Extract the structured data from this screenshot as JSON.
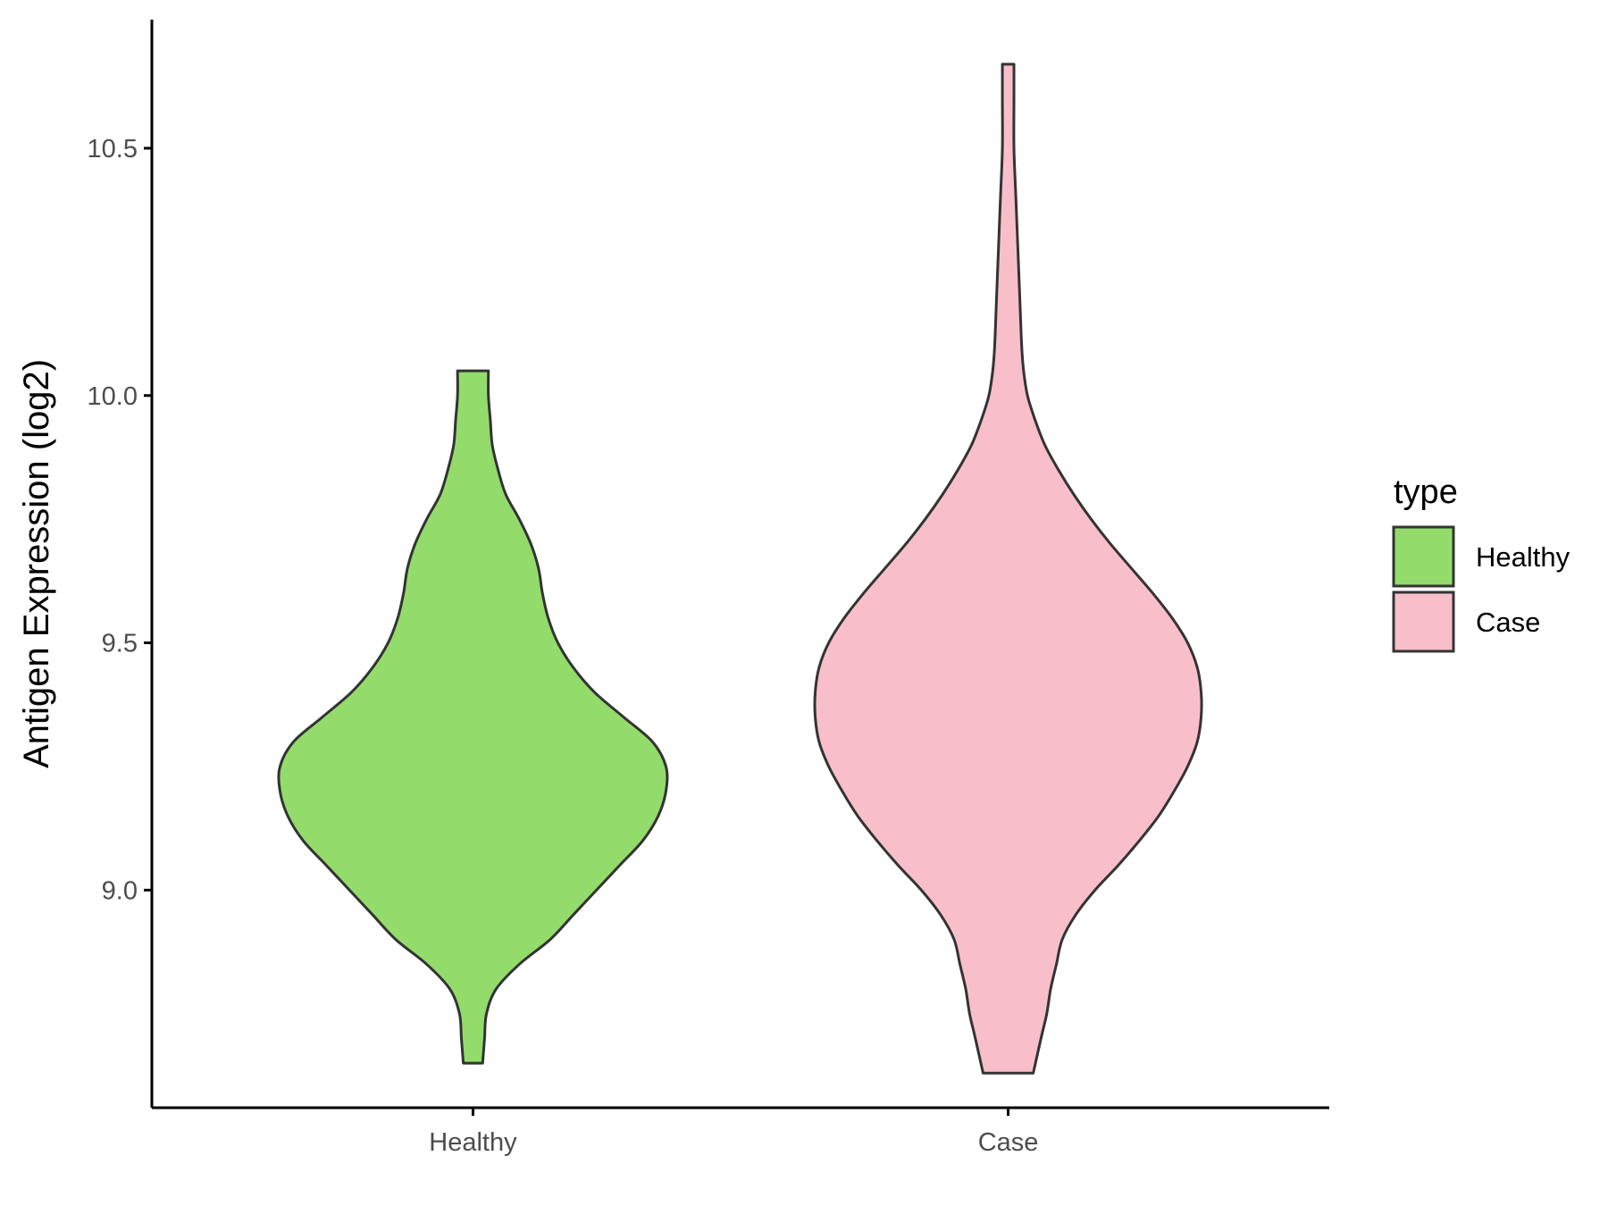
{
  "chart_data": {
    "type": "violin",
    "title": "",
    "xlabel": "",
    "ylabel": "Antigen Expression (log2)",
    "ylim": [
      8.56,
      10.76
    ],
    "yticks": [
      "9.0",
      "9.5",
      "10.0",
      "10.5"
    ],
    "ytick_values": [
      9.0,
      9.5,
      10.0,
      10.5
    ],
    "categories": [
      "Healthy",
      "Case"
    ],
    "grid": false,
    "legend": {
      "title": "type",
      "position": "right",
      "entries": [
        "Healthy",
        "Case"
      ]
    },
    "series": [
      {
        "name": "Healthy",
        "color": "#93DC6B",
        "ymin": 8.65,
        "ymax": 10.05,
        "density_profile": [
          [
            8.65,
            0.05
          ],
          [
            8.7,
            0.06
          ],
          [
            8.75,
            0.07
          ],
          [
            8.8,
            0.12
          ],
          [
            8.85,
            0.24
          ],
          [
            8.9,
            0.4
          ],
          [
            8.95,
            0.52
          ],
          [
            9.0,
            0.64
          ],
          [
            9.05,
            0.76
          ],
          [
            9.1,
            0.88
          ],
          [
            9.15,
            0.96
          ],
          [
            9.2,
            1.0
          ],
          [
            9.25,
            1.0
          ],
          [
            9.3,
            0.93
          ],
          [
            9.35,
            0.78
          ],
          [
            9.4,
            0.63
          ],
          [
            9.45,
            0.52
          ],
          [
            9.5,
            0.44
          ],
          [
            9.55,
            0.39
          ],
          [
            9.6,
            0.36
          ],
          [
            9.65,
            0.34
          ],
          [
            9.7,
            0.3
          ],
          [
            9.75,
            0.24
          ],
          [
            9.8,
            0.17
          ],
          [
            9.85,
            0.13
          ],
          [
            9.9,
            0.1
          ],
          [
            9.95,
            0.09
          ],
          [
            10.0,
            0.08
          ],
          [
            10.05,
            0.08
          ]
        ]
      },
      {
        "name": "Case",
        "color": "#F8BFCB",
        "ymin": 8.63,
        "ymax": 10.67,
        "density_profile": [
          [
            8.63,
            0.13
          ],
          [
            8.7,
            0.17
          ],
          [
            8.75,
            0.2
          ],
          [
            8.8,
            0.22
          ],
          [
            8.85,
            0.25
          ],
          [
            8.9,
            0.28
          ],
          [
            8.95,
            0.35
          ],
          [
            9.0,
            0.45
          ],
          [
            9.05,
            0.57
          ],
          [
            9.1,
            0.68
          ],
          [
            9.15,
            0.78
          ],
          [
            9.2,
            0.86
          ],
          [
            9.25,
            0.93
          ],
          [
            9.3,
            0.98
          ],
          [
            9.35,
            1.0
          ],
          [
            9.4,
            1.0
          ],
          [
            9.45,
            0.98
          ],
          [
            9.5,
            0.93
          ],
          [
            9.55,
            0.85
          ],
          [
            9.6,
            0.75
          ],
          [
            9.65,
            0.64
          ],
          [
            9.7,
            0.53
          ],
          [
            9.75,
            0.43
          ],
          [
            9.8,
            0.34
          ],
          [
            9.85,
            0.26
          ],
          [
            9.9,
            0.19
          ],
          [
            9.95,
            0.14
          ],
          [
            10.0,
            0.1
          ],
          [
            10.05,
            0.08
          ],
          [
            10.1,
            0.07
          ],
          [
            10.2,
            0.06
          ],
          [
            10.3,
            0.05
          ],
          [
            10.4,
            0.04
          ],
          [
            10.5,
            0.03
          ],
          [
            10.6,
            0.03
          ],
          [
            10.67,
            0.03
          ]
        ]
      }
    ]
  },
  "style": {
    "outline_color": "#333333",
    "axis_color": "#000000"
  }
}
